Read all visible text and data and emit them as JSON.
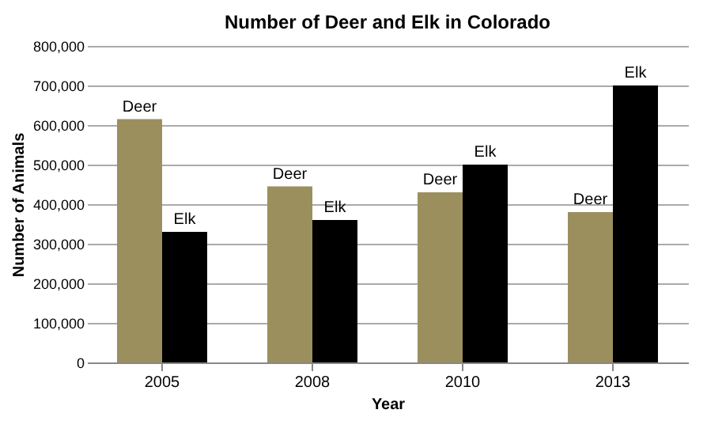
{
  "chart_data": {
    "type": "bar",
    "title": "Number of Deer and Elk in Colorado",
    "xlabel": "Year",
    "ylabel": "Number of Animals",
    "categories": [
      "2005",
      "2008",
      "2010",
      "2013"
    ],
    "series": [
      {
        "name": "Deer",
        "color": "#9c8f5e",
        "values": [
          615000,
          445000,
          430000,
          380000
        ]
      },
      {
        "name": "Elk",
        "color": "#000000",
        "values": [
          330000,
          360000,
          500000,
          700000
        ]
      }
    ],
    "ylim": [
      0,
      800000
    ],
    "yticks": [
      0,
      {
        "value": 100000,
        "label": "100,000"
      },
      {
        "value": 200000,
        "label": "200,000"
      },
      {
        "value": 300000,
        "label": "300,000"
      },
      {
        "value": 400000,
        "label": "400,000"
      },
      {
        "value": 500000,
        "label": "500,000"
      },
      {
        "value": 600000,
        "label": "600,000"
      },
      {
        "value": 700000,
        "label": "700,000"
      },
      {
        "value": 800000,
        "label": "800,000"
      }
    ],
    "grid": "y",
    "legend": false
  }
}
